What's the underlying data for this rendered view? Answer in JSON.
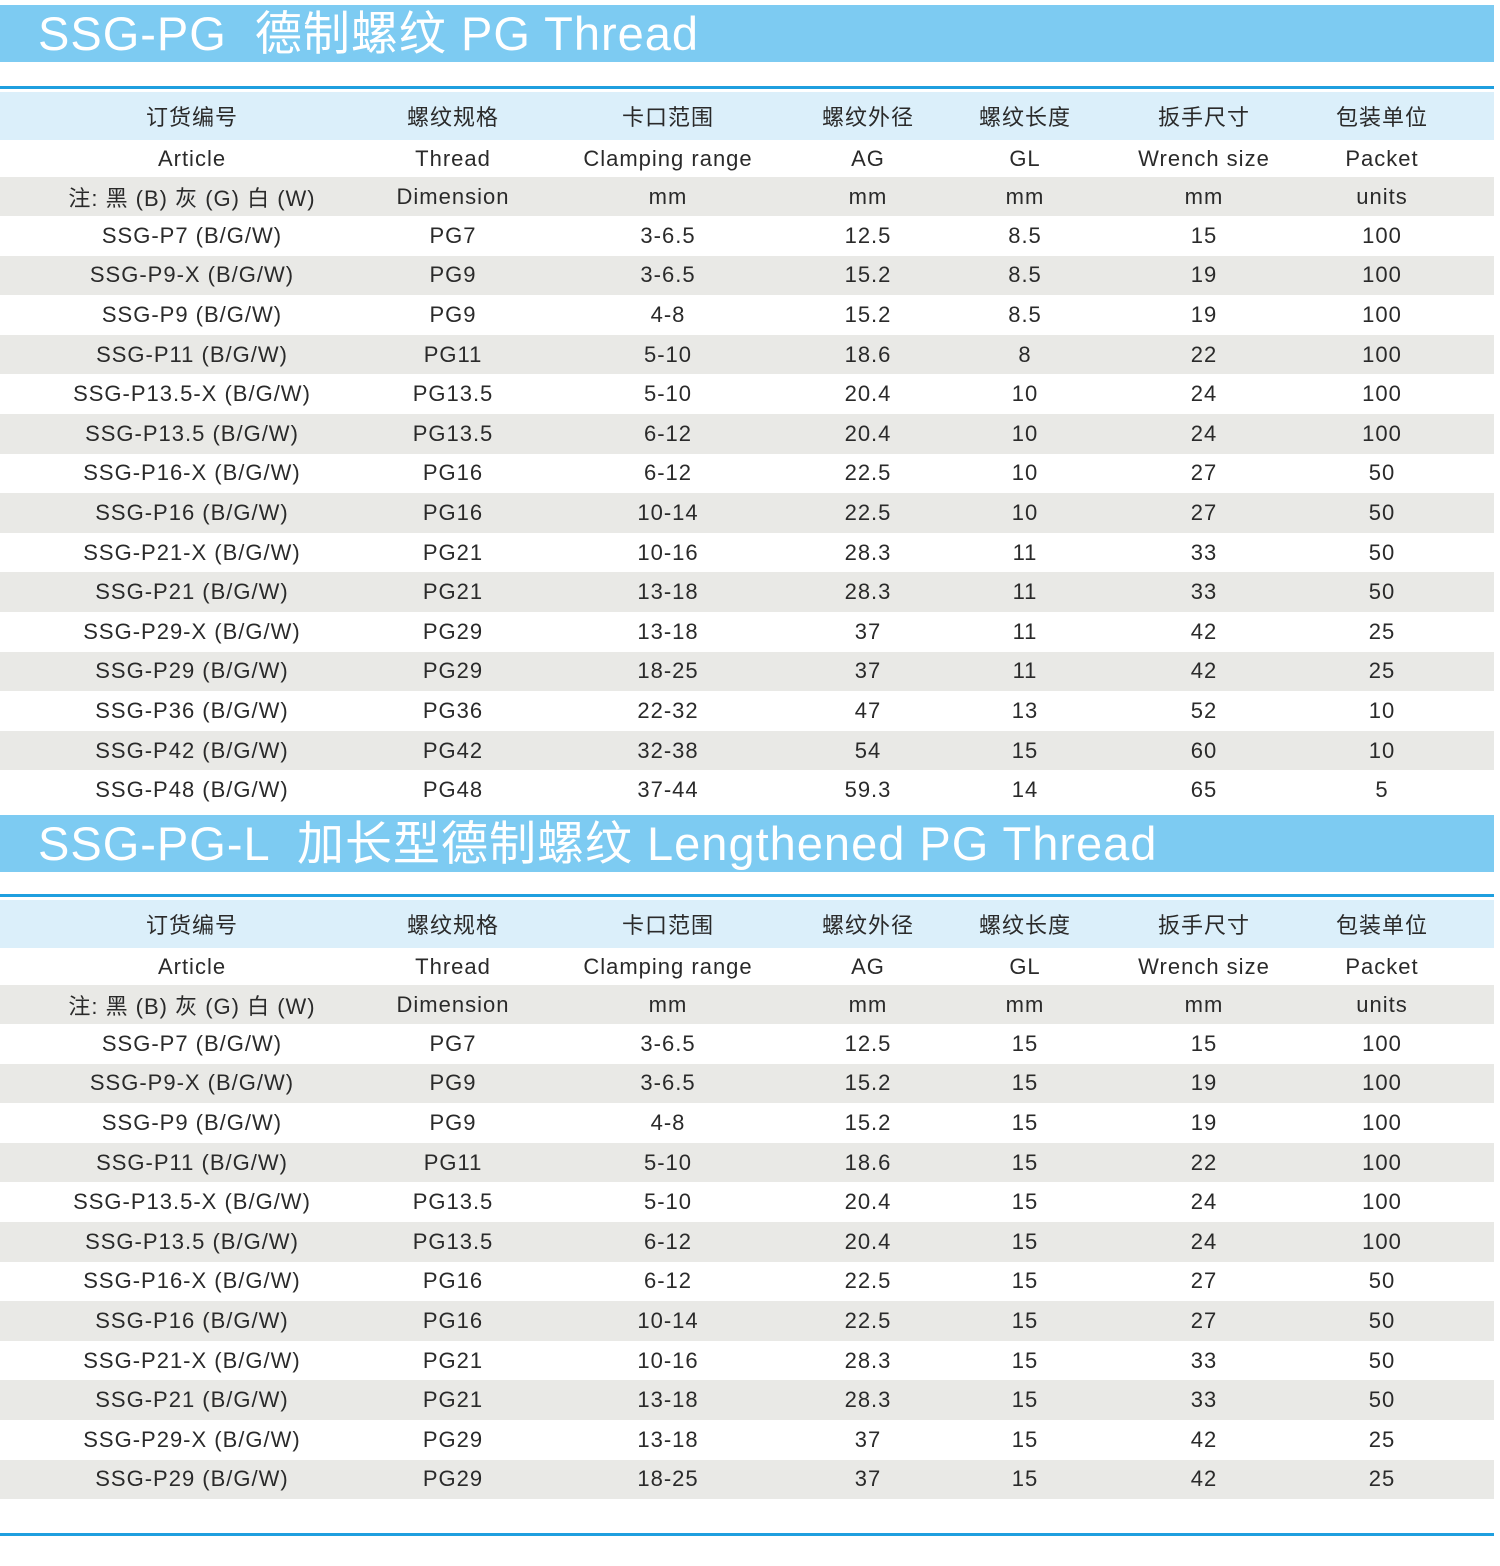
{
  "sections": [
    {
      "title": "SSG-PG  德制螺纹 PG Thread",
      "headers_cn": [
        "订货编号",
        "螺纹规格",
        "卡口范围",
        "螺纹外径",
        "螺纹长度",
        "扳手尺寸",
        "包装单位"
      ],
      "headers_en": [
        "Article",
        "Thread",
        "Clamping range",
        "AG",
        "GL",
        "Wrench size",
        "Packet"
      ],
      "headers_unit": [
        "注: 黑 (B) 灰 (G) 白 (W)",
        "Dimension",
        "mm",
        "mm",
        "mm",
        "mm",
        "units"
      ],
      "rows": [
        [
          "SSG-P7 (B/G/W)",
          "PG7",
          "3-6.5",
          "12.5",
          "8.5",
          "15",
          "100"
        ],
        [
          "SSG-P9-X (B/G/W)",
          "PG9",
          "3-6.5",
          "15.2",
          "8.5",
          "19",
          "100"
        ],
        [
          "SSG-P9 (B/G/W)",
          "PG9",
          "4-8",
          "15.2",
          "8.5",
          "19",
          "100"
        ],
        [
          "SSG-P11 (B/G/W)",
          "PG11",
          "5-10",
          "18.6",
          "8",
          "22",
          "100"
        ],
        [
          "SSG-P13.5-X (B/G/W)",
          "PG13.5",
          "5-10",
          "20.4",
          "10",
          "24",
          "100"
        ],
        [
          "SSG-P13.5 (B/G/W)",
          "PG13.5",
          "6-12",
          "20.4",
          "10",
          "24",
          "100"
        ],
        [
          "SSG-P16-X (B/G/W)",
          "PG16",
          "6-12",
          "22.5",
          "10",
          "27",
          "50"
        ],
        [
          "SSG-P16 (B/G/W)",
          "PG16",
          "10-14",
          "22.5",
          "10",
          "27",
          "50"
        ],
        [
          "SSG-P21-X (B/G/W)",
          "PG21",
          "10-16",
          "28.3",
          "11",
          "33",
          "50"
        ],
        [
          "SSG-P21 (B/G/W)",
          "PG21",
          "13-18",
          "28.3",
          "11",
          "33",
          "50"
        ],
        [
          "SSG-P29-X (B/G/W)",
          "PG29",
          "13-18",
          "37",
          "11",
          "42",
          "25"
        ],
        [
          "SSG-P29 (B/G/W)",
          "PG29",
          "18-25",
          "37",
          "11",
          "42",
          "25"
        ],
        [
          "SSG-P36 (B/G/W)",
          "PG36",
          "22-32",
          "47",
          "13",
          "52",
          "10"
        ],
        [
          "SSG-P42 (B/G/W)",
          "PG42",
          "32-38",
          "54",
          "15",
          "60",
          "10"
        ],
        [
          "SSG-P48 (B/G/W)",
          "PG48",
          "37-44",
          "59.3",
          "14",
          "65",
          "5"
        ]
      ]
    },
    {
      "title": "SSG-PG-L  加长型德制螺纹 Lengthened PG Thread",
      "headers_cn": [
        "订货编号",
        "螺纹规格",
        "卡口范围",
        "螺纹外径",
        "螺纹长度",
        "扳手尺寸",
        "包装单位"
      ],
      "headers_en": [
        "Article",
        "Thread",
        "Clamping range",
        "AG",
        "GL",
        "Wrench size",
        "Packet"
      ],
      "headers_unit": [
        "注: 黑 (B) 灰 (G) 白 (W)",
        "Dimension",
        "mm",
        "mm",
        "mm",
        "mm",
        "units"
      ],
      "rows": [
        [
          "SSG-P7 (B/G/W)",
          "PG7",
          "3-6.5",
          "12.5",
          "15",
          "15",
          "100"
        ],
        [
          "SSG-P9-X (B/G/W)",
          "PG9",
          "3-6.5",
          "15.2",
          "15",
          "19",
          "100"
        ],
        [
          "SSG-P9 (B/G/W)",
          "PG9",
          "4-8",
          "15.2",
          "15",
          "19",
          "100"
        ],
        [
          "SSG-P11 (B/G/W)",
          "PG11",
          "5-10",
          "18.6",
          "15",
          "22",
          "100"
        ],
        [
          "SSG-P13.5-X (B/G/W)",
          "PG13.5",
          "5-10",
          "20.4",
          "15",
          "24",
          "100"
        ],
        [
          "SSG-P13.5 (B/G/W)",
          "PG13.5",
          "6-12",
          "20.4",
          "15",
          "24",
          "100"
        ],
        [
          "SSG-P16-X (B/G/W)",
          "PG16",
          "6-12",
          "22.5",
          "15",
          "27",
          "50"
        ],
        [
          "SSG-P16 (B/G/W)",
          "PG16",
          "10-14",
          "22.5",
          "15",
          "27",
          "50"
        ],
        [
          "SSG-P21-X (B/G/W)",
          "PG21",
          "10-16",
          "28.3",
          "15",
          "33",
          "50"
        ],
        [
          "SSG-P21 (B/G/W)",
          "PG21",
          "13-18",
          "28.3",
          "15",
          "33",
          "50"
        ],
        [
          "SSG-P29-X (B/G/W)",
          "PG29",
          "13-18",
          "37",
          "15",
          "42",
          "25"
        ],
        [
          "SSG-P29 (B/G/W)",
          "PG29",
          "18-25",
          "37",
          "15",
          "42",
          "25"
        ]
      ]
    }
  ],
  "colors": {
    "banner": "#7dcbf2",
    "rule": "#1f9fdf",
    "header": "#dbeffa",
    "stripe": "#e9e9e6"
  }
}
